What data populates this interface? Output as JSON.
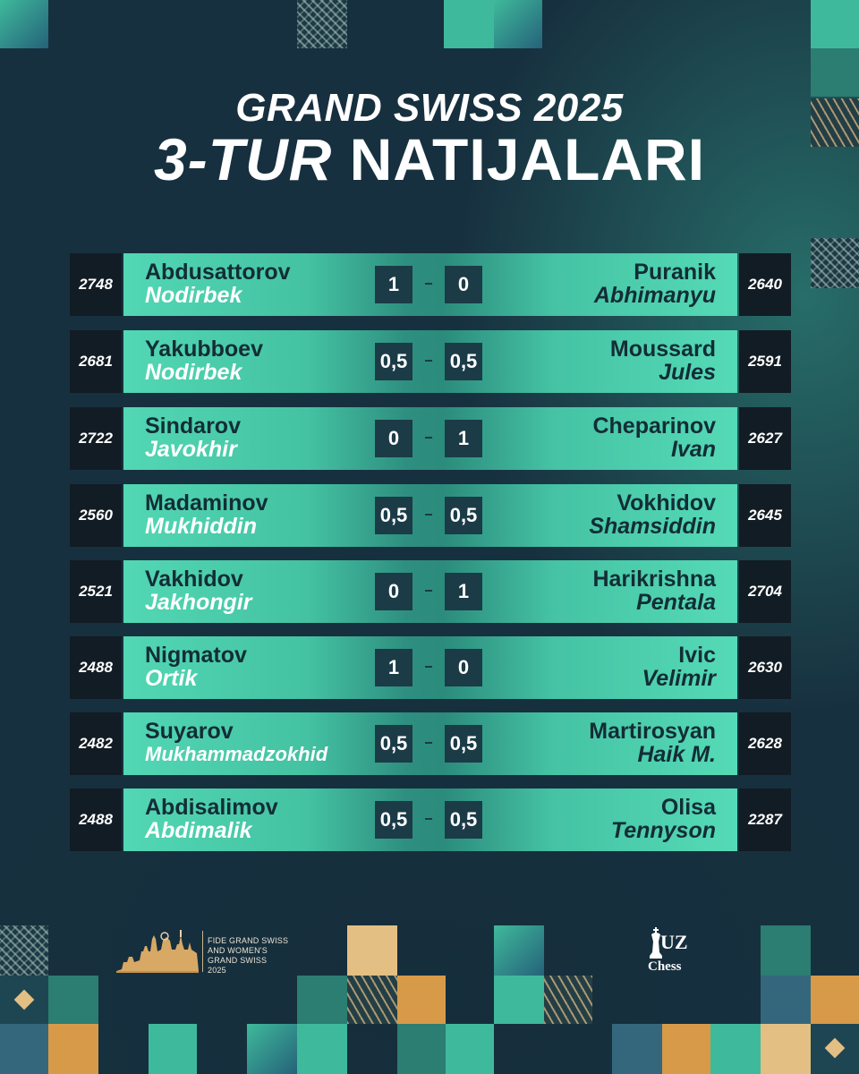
{
  "title": {
    "line1": "GRAND SWISS 2025",
    "line2_italic": "3-TUR",
    "line2_rest": " NATIJALARI"
  },
  "games": [
    {
      "left_rating": "2748",
      "left_last": "Abdusattorov",
      "left_first": "Nodirbek",
      "left_score": "1",
      "right_score": "0",
      "right_last": "Puranik",
      "right_first": "Abhimanyu",
      "right_rating": "2640"
    },
    {
      "left_rating": "2681",
      "left_last": "Yakubboev",
      "left_first": "Nodirbek",
      "left_score": "0,5",
      "right_score": "0,5",
      "right_last": "Moussard",
      "right_first": "Jules",
      "right_rating": "2591"
    },
    {
      "left_rating": "2722",
      "left_last": "Sindarov",
      "left_first": "Javokhir",
      "left_score": "0",
      "right_score": "1",
      "right_last": "Cheparinov",
      "right_first": "Ivan",
      "right_rating": "2627"
    },
    {
      "left_rating": "2560",
      "left_last": "Madaminov",
      "left_first": "Mukhiddin",
      "left_score": "0,5",
      "right_score": "0,5",
      "right_last": "Vokhidov",
      "right_first": "Shamsiddin",
      "right_rating": "2645"
    },
    {
      "left_rating": "2521",
      "left_last": "Vakhidov",
      "left_first": "Jakhongir",
      "left_score": "0",
      "right_score": "1",
      "right_last": "Harikrishna",
      "right_first": "Pentala",
      "right_rating": "2704"
    },
    {
      "left_rating": "2488",
      "left_last": "Nigmatov",
      "left_first": "Ortik",
      "left_score": "1",
      "right_score": "0",
      "right_last": "Ivic",
      "right_first": "Velimir",
      "right_rating": "2630"
    },
    {
      "left_rating": "2482",
      "left_last": "Suyarov",
      "left_first": "Mukhammadzokhid",
      "left_score": "0,5",
      "right_score": "0,5",
      "right_last": "Martirosyan",
      "right_first": "Haik M.",
      "right_rating": "2628"
    },
    {
      "left_rating": "2488",
      "left_last": "Abdisalimov",
      "left_first": "Abdimalik",
      "left_score": "0,5",
      "right_score": "0,5",
      "right_last": "Olisa",
      "right_first": "Tennyson",
      "right_rating": "2287"
    }
  ],
  "footer": {
    "event_logo_lines": [
      "FIDE GRAND SWISS",
      "AND WOMEN'S",
      "GRAND SWISS",
      "2025"
    ],
    "brand_uz": "UZ",
    "brand_chess": "Chess"
  },
  "colors": {
    "background": "#17303f",
    "bar_light": "#52d7b4",
    "bar_dark": "#2b8b7c",
    "rating_box": "#121c24",
    "score_box": "#1b3b47",
    "accent_sand": "#e4bf83"
  },
  "icons": [
    "fide-skyline-logo",
    "chess-king-icon"
  ]
}
